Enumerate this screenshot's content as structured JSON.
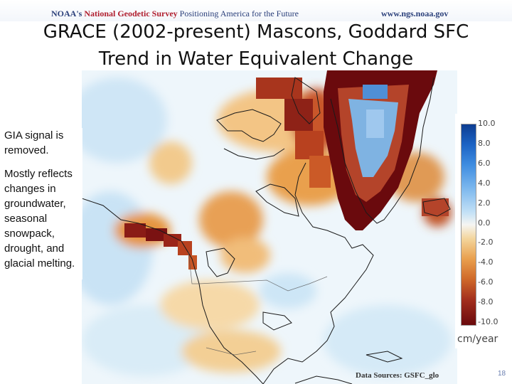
{
  "header": {
    "agency": "NOAA's",
    "org": "National Geodetic Survey",
    "tagline": "Positioning America for the Future",
    "url": "www.ngs.noaa.gov"
  },
  "title": {
    "line1": "GRACE (2002-present) Mascons, Goddard SFC",
    "line2": "Trend in Water Equivalent Change"
  },
  "notes": {
    "note1": "GIA signal is removed.",
    "note2": "Mostly reflects changes in groundwater, seasonal snowpack, drought, and glacial melting."
  },
  "legend": {
    "ticks": [
      "10.0",
      "8.0",
      "6.0",
      "4.0",
      "2.0",
      "0.0",
      "-2.0",
      "-4.0",
      "-6.0",
      "-8.0",
      "-10.0"
    ],
    "units": "cm/year",
    "colors": {
      "max": "#0d3d91",
      "mid": "#f5f5f2",
      "min": "#6a0a0d"
    }
  },
  "source": "Data Sources: GSFC_glo",
  "page_number": "18"
}
